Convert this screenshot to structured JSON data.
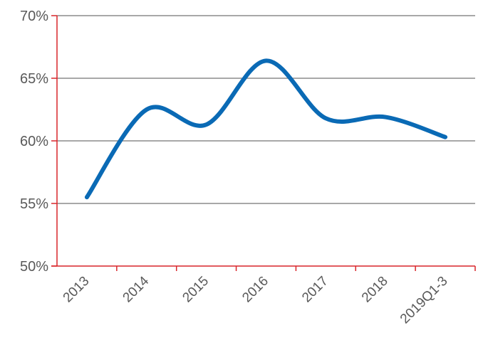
{
  "chart_data": {
    "type": "line",
    "title": "",
    "xlabel": "",
    "ylabel": "",
    "categories": [
      "2013",
      "2014",
      "2015",
      "2016",
      "2017",
      "2018",
      "2019Q1-3"
    ],
    "series": [
      {
        "values": [
          55.5,
          62.5,
          61.3,
          66.4,
          61.8,
          61.9,
          60.3
        ]
      }
    ],
    "ylim": [
      50,
      70
    ],
    "yticks": [
      50,
      55,
      60,
      65,
      70
    ],
    "ytick_labels": [
      "50%",
      "55%",
      "60%",
      "65%",
      "70%"
    ],
    "grid": true,
    "legend": "none",
    "colors": {
      "line": "#0a6ab5",
      "grid": "#8c8c8c",
      "axis": "#d9252a",
      "tick_text": "#595959"
    }
  }
}
